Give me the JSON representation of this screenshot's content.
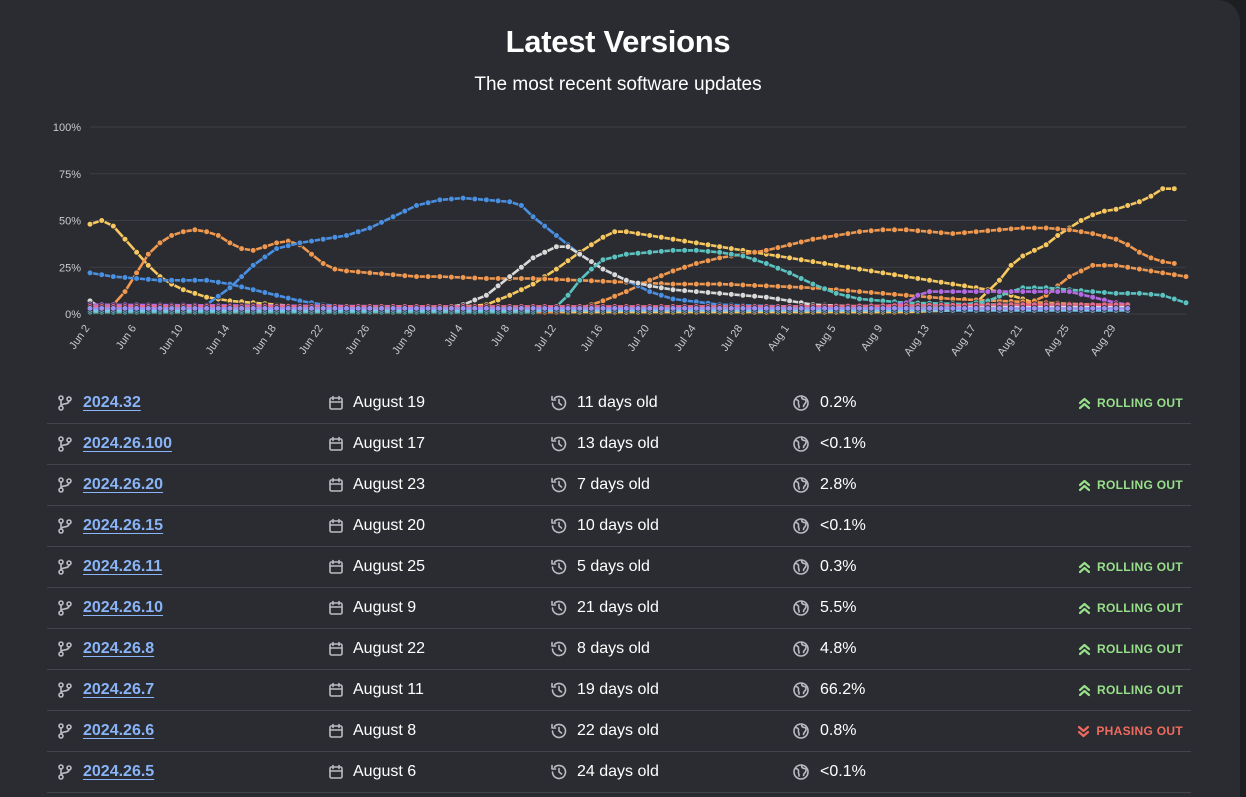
{
  "header": {
    "title": "Latest Versions",
    "subtitle": "The most recent software updates"
  },
  "chart_data": {
    "type": "line",
    "ylabel": "",
    "xlabel": "",
    "ylim": [
      0,
      100
    ],
    "y_ticks": [
      "100%",
      "75%",
      "50%",
      "25%",
      "0%"
    ],
    "x_ticks": [
      "Jun 2",
      "Jun 6",
      "Jun 10",
      "Jun 14",
      "Jun 18",
      "Jun 22",
      "Jun 26",
      "Jun 30",
      "Jul 4",
      "Jul 8",
      "Jul 12",
      "Jul 16",
      "Jul 20",
      "Jul 24",
      "Jul 28",
      "Aug 1",
      "Aug 5",
      "Aug 9",
      "Aug 13",
      "Aug 17",
      "Aug 21",
      "Aug 25",
      "Aug 29"
    ],
    "x_range_days": [
      0,
      89
    ],
    "grid": true,
    "legend": "none",
    "series": [
      {
        "color": "#f6c85f",
        "points": [
          [
            0,
            48
          ],
          [
            1,
            50
          ],
          [
            2,
            47
          ],
          [
            3,
            40
          ],
          [
            4,
            33
          ],
          [
            5,
            26
          ],
          [
            6,
            20
          ],
          [
            7,
            16
          ],
          [
            8,
            13
          ],
          [
            9,
            11
          ],
          [
            10,
            9
          ],
          [
            12,
            7
          ],
          [
            14,
            6
          ],
          [
            16,
            5
          ],
          [
            18,
            4
          ],
          [
            20,
            3
          ],
          [
            22,
            3
          ],
          [
            30,
            3
          ],
          [
            34,
            5
          ],
          [
            36,
            10
          ],
          [
            38,
            16
          ],
          [
            40,
            24
          ],
          [
            42,
            33
          ],
          [
            44,
            41
          ],
          [
            45,
            44
          ],
          [
            46,
            44
          ],
          [
            48,
            42
          ],
          [
            50,
            40
          ],
          [
            52,
            38
          ],
          [
            54,
            36
          ],
          [
            56,
            34
          ],
          [
            58,
            32
          ],
          [
            60,
            30
          ],
          [
            62,
            28
          ],
          [
            64,
            26
          ],
          [
            66,
            24
          ],
          [
            68,
            22
          ],
          [
            70,
            20
          ],
          [
            72,
            18
          ],
          [
            74,
            16
          ],
          [
            76,
            14
          ],
          [
            78,
            12
          ],
          [
            79,
            10
          ],
          [
            80,
            8
          ],
          [
            81,
            6
          ],
          [
            82,
            5
          ],
          [
            83,
            4
          ],
          [
            89,
            3
          ]
        ]
      },
      {
        "color": "#f6c85f",
        "points": [
          [
            0,
            1
          ],
          [
            70,
            1
          ],
          [
            74,
            2
          ],
          [
            76,
            6
          ],
          [
            78,
            18
          ],
          [
            79,
            26
          ],
          [
            80,
            31
          ],
          [
            81,
            34
          ],
          [
            82,
            37
          ],
          [
            83,
            42
          ],
          [
            84,
            46
          ],
          [
            85,
            50
          ],
          [
            86,
            53
          ],
          [
            87,
            55
          ],
          [
            88,
            56
          ],
          [
            89,
            58
          ],
          [
            90,
            60
          ],
          [
            91,
            63
          ],
          [
            92,
            67
          ],
          [
            93,
            67
          ]
        ]
      },
      {
        "color": "#f0984f",
        "points": [
          [
            0,
            3
          ],
          [
            2,
            5
          ],
          [
            3,
            12
          ],
          [
            4,
            22
          ],
          [
            5,
            32
          ],
          [
            6,
            38
          ],
          [
            7,
            42
          ],
          [
            8,
            44
          ],
          [
            9,
            45
          ],
          [
            10,
            44
          ],
          [
            11,
            42
          ],
          [
            12,
            38
          ],
          [
            13,
            35
          ],
          [
            14,
            34
          ],
          [
            15,
            36
          ],
          [
            16,
            38
          ],
          [
            17,
            39
          ],
          [
            18,
            37
          ],
          [
            19,
            32
          ],
          [
            20,
            27
          ],
          [
            21,
            24
          ],
          [
            22,
            23
          ],
          [
            24,
            22
          ],
          [
            26,
            21
          ],
          [
            28,
            20
          ],
          [
            30,
            20
          ],
          [
            34,
            19
          ],
          [
            38,
            19
          ],
          [
            42,
            18
          ],
          [
            46,
            17
          ],
          [
            50,
            16
          ],
          [
            54,
            16
          ],
          [
            58,
            15
          ],
          [
            62,
            14
          ],
          [
            66,
            12
          ],
          [
            70,
            10
          ],
          [
            74,
            8
          ],
          [
            78,
            7
          ],
          [
            82,
            6
          ],
          [
            86,
            5
          ],
          [
            89,
            5
          ]
        ]
      },
      {
        "color": "#f0984f",
        "points": [
          [
            0,
            1
          ],
          [
            40,
            1
          ],
          [
            42,
            3
          ],
          [
            44,
            7
          ],
          [
            46,
            12
          ],
          [
            48,
            18
          ],
          [
            50,
            23
          ],
          [
            52,
            27
          ],
          [
            54,
            30
          ],
          [
            56,
            32
          ],
          [
            58,
            34
          ],
          [
            60,
            37
          ],
          [
            62,
            40
          ],
          [
            64,
            42
          ],
          [
            66,
            44
          ],
          [
            68,
            45
          ],
          [
            70,
            45
          ],
          [
            72,
            44
          ],
          [
            74,
            43
          ],
          [
            76,
            44
          ],
          [
            78,
            45
          ],
          [
            80,
            46
          ],
          [
            82,
            46
          ],
          [
            84,
            45
          ],
          [
            86,
            43
          ],
          [
            88,
            40
          ],
          [
            89,
            37
          ],
          [
            90,
            33
          ],
          [
            91,
            30
          ],
          [
            92,
            28
          ],
          [
            93,
            27
          ]
        ]
      },
      {
        "color": "#f0984f",
        "points": [
          [
            72,
            2
          ],
          [
            80,
            4
          ],
          [
            82,
            10
          ],
          [
            84,
            20
          ],
          [
            86,
            26
          ],
          [
            88,
            26
          ],
          [
            90,
            24
          ],
          [
            92,
            22
          ],
          [
            94,
            20
          ],
          [
            96,
            18
          ],
          [
            98,
            16
          ],
          [
            100,
            14
          ],
          [
            102,
            12
          ],
          [
            104,
            8
          ],
          [
            105,
            5
          ]
        ]
      },
      {
        "color": "#4a90e2",
        "points": [
          [
            0,
            22
          ],
          [
            2,
            20
          ],
          [
            4,
            19
          ],
          [
            6,
            18
          ],
          [
            8,
            18
          ],
          [
            10,
            18
          ],
          [
            12,
            16
          ],
          [
            14,
            13
          ],
          [
            16,
            10
          ],
          [
            18,
            7
          ],
          [
            20,
            5
          ],
          [
            24,
            3
          ],
          [
            30,
            2
          ],
          [
            89,
            2
          ]
        ]
      },
      {
        "color": "#4a90e2",
        "points": [
          [
            0,
            2
          ],
          [
            8,
            2
          ],
          [
            10,
            5
          ],
          [
            12,
            14
          ],
          [
            14,
            26
          ],
          [
            16,
            35
          ],
          [
            18,
            38
          ],
          [
            20,
            40
          ],
          [
            22,
            42
          ],
          [
            24,
            46
          ],
          [
            26,
            52
          ],
          [
            28,
            58
          ],
          [
            30,
            61
          ],
          [
            32,
            62
          ],
          [
            34,
            61
          ],
          [
            36,
            60
          ],
          [
            37,
            58
          ],
          [
            38,
            52
          ],
          [
            40,
            42
          ],
          [
            42,
            32
          ],
          [
            44,
            24
          ],
          [
            46,
            18
          ],
          [
            48,
            12
          ],
          [
            50,
            8
          ],
          [
            54,
            5
          ],
          [
            60,
            4
          ],
          [
            89,
            4
          ]
        ]
      },
      {
        "color": "#d9d9d9",
        "points": [
          [
            0,
            7
          ],
          [
            1,
            3
          ],
          [
            30,
            3
          ],
          [
            32,
            5
          ],
          [
            34,
            10
          ],
          [
            36,
            20
          ],
          [
            38,
            30
          ],
          [
            40,
            36
          ],
          [
            41,
            36
          ],
          [
            42,
            32
          ],
          [
            44,
            24
          ],
          [
            46,
            18
          ],
          [
            48,
            15
          ],
          [
            50,
            13
          ],
          [
            52,
            12
          ],
          [
            54,
            11
          ],
          [
            56,
            10
          ],
          [
            58,
            9
          ],
          [
            60,
            7
          ],
          [
            62,
            5
          ],
          [
            66,
            4
          ],
          [
            89,
            4
          ]
        ]
      },
      {
        "color": "#5bc2c0",
        "points": [
          [
            0,
            1
          ],
          [
            38,
            1
          ],
          [
            40,
            4
          ],
          [
            41,
            10
          ],
          [
            42,
            18
          ],
          [
            43,
            24
          ],
          [
            44,
            29
          ],
          [
            46,
            32
          ],
          [
            48,
            33
          ],
          [
            50,
            34
          ],
          [
            52,
            34
          ],
          [
            54,
            33
          ],
          [
            56,
            31
          ],
          [
            58,
            27
          ],
          [
            60,
            22
          ],
          [
            62,
            16
          ],
          [
            64,
            11
          ],
          [
            66,
            8
          ],
          [
            70,
            6
          ],
          [
            78,
            5
          ],
          [
            89,
            5
          ]
        ]
      },
      {
        "color": "#5bc2c0",
        "points": [
          [
            66,
            3
          ],
          [
            74,
            4
          ],
          [
            77,
            7
          ],
          [
            79,
            12
          ],
          [
            80,
            14
          ],
          [
            82,
            14
          ],
          [
            84,
            13
          ],
          [
            86,
            12
          ],
          [
            88,
            11
          ],
          [
            90,
            11
          ],
          [
            92,
            10
          ],
          [
            94,
            6
          ],
          [
            96,
            4
          ],
          [
            102,
            3
          ]
        ]
      },
      {
        "color": "#b36ae2",
        "points": [
          [
            0,
            5
          ],
          [
            30,
            4
          ],
          [
            60,
            4
          ],
          [
            68,
            4
          ],
          [
            70,
            6
          ],
          [
            71,
            10
          ],
          [
            72,
            12
          ],
          [
            74,
            12
          ],
          [
            80,
            12
          ],
          [
            84,
            12
          ],
          [
            86,
            9
          ],
          [
            88,
            6
          ],
          [
            89,
            5
          ]
        ]
      },
      {
        "color": "#e96b8a",
        "points": [
          [
            0,
            4
          ],
          [
            40,
            4
          ],
          [
            60,
            4
          ],
          [
            80,
            5
          ],
          [
            89,
            5
          ]
        ]
      },
      {
        "color": "#7ec6f2",
        "points": [
          [
            0,
            2
          ],
          [
            89,
            2
          ]
        ]
      },
      {
        "color": "#9b8ff2",
        "points": [
          [
            0,
            3
          ],
          [
            89,
            3
          ]
        ]
      }
    ]
  },
  "versions": [
    {
      "name": "2024.32",
      "date": "August 19",
      "age": "11 days old",
      "share": "0.2%",
      "status": "ROLLING OUT",
      "status_kind": "up"
    },
    {
      "name": "2024.26.100",
      "date": "August 17",
      "age": "13 days old",
      "share": "<0.1%",
      "status": "",
      "status_kind": "none"
    },
    {
      "name": "2024.26.20",
      "date": "August 23",
      "age": "7 days old",
      "share": "2.8%",
      "status": "ROLLING OUT",
      "status_kind": "up"
    },
    {
      "name": "2024.26.15",
      "date": "August 20",
      "age": "10 days old",
      "share": "<0.1%",
      "status": "",
      "status_kind": "none"
    },
    {
      "name": "2024.26.11",
      "date": "August 25",
      "age": "5 days old",
      "share": "0.3%",
      "status": "ROLLING OUT",
      "status_kind": "up"
    },
    {
      "name": "2024.26.10",
      "date": "August 9",
      "age": "21 days old",
      "share": "5.5%",
      "status": "ROLLING OUT",
      "status_kind": "up"
    },
    {
      "name": "2024.26.8",
      "date": "August 22",
      "age": "8 days old",
      "share": "4.8%",
      "status": "ROLLING OUT",
      "status_kind": "up"
    },
    {
      "name": "2024.26.7",
      "date": "August 11",
      "age": "19 days old",
      "share": "66.2%",
      "status": "ROLLING OUT",
      "status_kind": "up"
    },
    {
      "name": "2024.26.6",
      "date": "August 8",
      "age": "22 days old",
      "share": "0.8%",
      "status": "PHASING OUT",
      "status_kind": "down"
    },
    {
      "name": "2024.26.5",
      "date": "August 6",
      "age": "24 days old",
      "share": "<0.1%",
      "status": "",
      "status_kind": "none"
    }
  ],
  "icons": {
    "version": "git-branch-icon",
    "date": "calendar-icon",
    "age": "history-icon",
    "share": "globe-icon",
    "rolling_out": "double-chevron-up-icon",
    "phasing_out": "double-chevron-down-icon"
  },
  "colors": {
    "background": "#2a2c31",
    "link": "#8ab4f8",
    "rolling_out": "#98e08a",
    "phasing_out": "#f06b5f"
  }
}
